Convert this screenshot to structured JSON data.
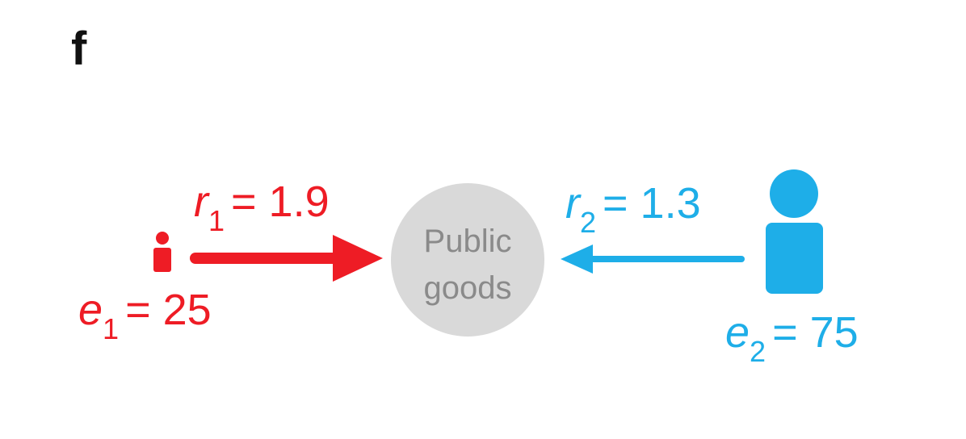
{
  "panel_label": "f",
  "colors": {
    "player1": "#ee1c25",
    "player2": "#1eaee8",
    "goods_fill": "#d9d9d9",
    "goods_text": "#8a8a8a"
  },
  "public_goods": {
    "line1": "Public",
    "line2": "goods"
  },
  "player1": {
    "icon": "person-icon-small",
    "r_var": "r",
    "r_sub": "1",
    "r_value": "= 1.9",
    "e_var": "e",
    "e_sub": "1",
    "e_value": "= 25"
  },
  "player2": {
    "icon": "person-icon-large",
    "r_var": "r",
    "r_sub": "2",
    "r_value": "= 1.3",
    "e_var": "e",
    "e_sub": "2",
    "e_value": "= 75"
  }
}
